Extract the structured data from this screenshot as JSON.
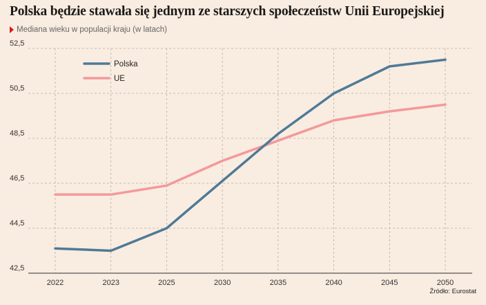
{
  "title": "Polska będzie stawała się jednym ze starszych społeczeństw Unii Europejskiej",
  "subtitle": "Mediana wieku w populacji kraju (w latach)",
  "source": "Źródło: Eurostat",
  "colors": {
    "Polska": "#4d7a98",
    "UE": "#f3999a",
    "grid": "#b9aea3",
    "axis": "#555555"
  },
  "chart_data": {
    "type": "line",
    "categories": [
      "2022",
      "2023",
      "2025",
      "2030",
      "2035",
      "2040",
      "2045",
      "2050"
    ],
    "series": [
      {
        "name": "Polska",
        "values": [
          43.6,
          43.5,
          44.5,
          46.6,
          48.7,
          50.5,
          51.7,
          52.0
        ]
      },
      {
        "name": "UE",
        "values": [
          46.0,
          46.0,
          46.4,
          47.5,
          48.4,
          49.3,
          49.7,
          50.0
        ]
      }
    ],
    "yticks": [
      "52,5",
      "50,5",
      "48,5",
      "46,5",
      "44,5",
      "42,5"
    ],
    "ylim": [
      42.5,
      52.5
    ],
    "grid": true,
    "legend": "top-left"
  }
}
